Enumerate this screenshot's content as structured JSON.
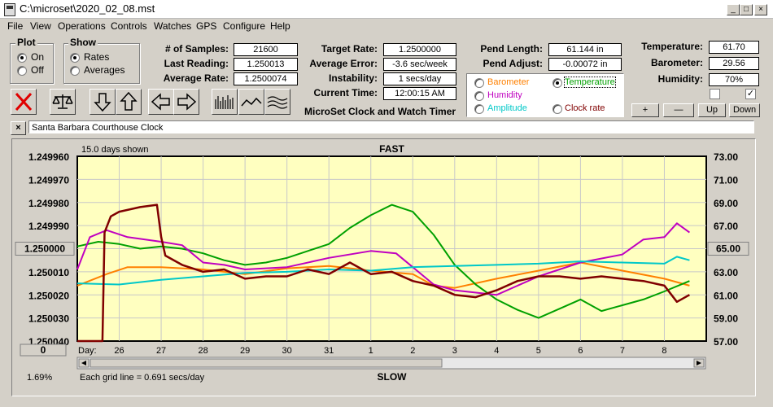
{
  "window": {
    "title": "C:\\microset\\2020_02_08.mst"
  },
  "title_buttons": {
    "minimize": "_",
    "maximize": "□",
    "close": "×"
  },
  "menu": [
    "File",
    "View",
    "Operations",
    "Controls",
    "Watches",
    "GPS",
    "Configure",
    "Help"
  ],
  "plot_group": {
    "label": "Plot",
    "on": "On",
    "off": "Off",
    "selected": "On"
  },
  "show_group": {
    "label": "Show",
    "rates": "Rates",
    "averages": "Averages",
    "selected": "Rates"
  },
  "stats": {
    "samples_label": "# of Samples:",
    "samples": "21600",
    "last_label": "Last Reading:",
    "last": "1.250013",
    "avg_label": "Average Rate:",
    "avg": "1.2500074"
  },
  "rates": {
    "target_label": "Target Rate:",
    "target": "1.2500000",
    "error_label": "Average Error:",
    "error": "-3.6 sec/week",
    "instab_label": "Instability:",
    "instab": "1 secs/day",
    "time_label": "Current Time:",
    "time": "12:00:15 AM",
    "app_name": "MicroSet Clock and Watch Timer"
  },
  "pend": {
    "length_label": "Pend Length:",
    "length": "61.144 in",
    "adjust_label": "Pend Adjust:",
    "adjust": "-0.00072 in"
  },
  "sensor_options": [
    {
      "label": "Barometer",
      "color": "#ff8000",
      "selected": false
    },
    {
      "label": "Temperature",
      "color": "#00a000",
      "selected": true
    },
    {
      "label": "Humidity",
      "color": "#c000c0",
      "selected": false
    },
    {
      "label": "Amplitude",
      "color": "#00c8c8",
      "selected": false
    },
    {
      "label": "Clock rate",
      "color": "#800000",
      "selected": false
    }
  ],
  "env": {
    "temp_label": "Temperature:",
    "temp": "61.70",
    "baro_label": "Barometer:",
    "baro": "29.56",
    "hum_label": "Humidity:",
    "hum": "70%",
    "check1": false,
    "check2": true
  },
  "adjust_buttons": {
    "plus": "+",
    "minus": "—",
    "up": "Up",
    "down": "Down"
  },
  "toolbar_icons": [
    "clear-icon",
    "balance-icon",
    "arrow-down-icon",
    "arrow-up-icon",
    "arrow-left-icon",
    "arrow-right-icon",
    "bars-icon",
    "wave-icon",
    "multi-wave-icon"
  ],
  "clock_name": {
    "close": "×",
    "value": "Santa Barbara Courthouse Clock"
  },
  "chart_data": {
    "type": "line",
    "top_left_label": "15.0 days shown",
    "top_label": "FAST",
    "bottom_label": "SLOW",
    "bottom_left_pct": "1.69%",
    "grid_note": "Each grid line = 0.691 secs/day",
    "day_prefix": "Day:",
    "center_left_button": "1.250000",
    "center_right_button": "65.00",
    "bottom_left_button": "0",
    "left_ticks": [
      "1.249960",
      "1.249970",
      "1.249980",
      "1.249990",
      "1.250000",
      "1.250010",
      "1.250020",
      "1.250030",
      "1.250040"
    ],
    "right_ticks": [
      "73.00",
      "71.00",
      "69.00",
      "67.00",
      "65.00",
      "63.00",
      "61.00",
      "59.00",
      "57.00"
    ],
    "days": [
      "26",
      "27",
      "28",
      "29",
      "30",
      "31",
      "1",
      "2",
      "3",
      "4",
      "5",
      "6",
      "7",
      "8"
    ],
    "x_range": [
      0,
      15
    ],
    "ylim_left": [
      1.24996,
      1.25004
    ],
    "ylim_right": [
      57,
      73
    ],
    "series": [
      {
        "name": "Barometer",
        "color": "#ff8000",
        "axis": "right",
        "x": [
          0,
          0.7,
          1.2,
          2,
          2.5,
          3,
          4,
          5,
          6,
          7,
          8,
          8.5,
          9,
          10,
          11,
          12,
          13,
          14,
          14.6
        ],
        "y": [
          61.8,
          62.8,
          63.4,
          63.4,
          63.3,
          63.2,
          62.8,
          63.3,
          63.5,
          63.1,
          62.8,
          61.8,
          61.6,
          62.4,
          63.1,
          63.8,
          63.1,
          62.4,
          61.8
        ]
      },
      {
        "name": "Temperature",
        "color": "#00a000",
        "axis": "right",
        "x": [
          0,
          0.5,
          1,
          1.5,
          2,
          2.5,
          3,
          3.5,
          4,
          4.5,
          5,
          5.5,
          6,
          6.5,
          7,
          7.5,
          8,
          8.5,
          9,
          9.5,
          10,
          10.5,
          11,
          11.5,
          12,
          12.5,
          13,
          13.5,
          14,
          14.6
        ],
        "y": [
          65.2,
          65.6,
          65.4,
          65.0,
          65.2,
          65.0,
          64.6,
          64.0,
          63.6,
          63.8,
          64.2,
          64.8,
          65.4,
          66.8,
          67.9,
          68.8,
          68.2,
          66.2,
          63.6,
          61.9,
          60.6,
          59.7,
          59.0,
          59.8,
          60.6,
          59.6,
          60.1,
          60.6,
          61.3,
          62.2
        ]
      },
      {
        "name": "Humidity",
        "color": "#c000c0",
        "axis": "right",
        "x": [
          0,
          0.3,
          0.7,
          1.2,
          2,
          2.5,
          3,
          3.5,
          4,
          5,
          6,
          7,
          7.6,
          8,
          8.5,
          9,
          10,
          11,
          12,
          13,
          13.5,
          14,
          14.3,
          14.6
        ],
        "y": [
          63.2,
          66.0,
          66.6,
          66.0,
          65.6,
          65.3,
          63.8,
          63.6,
          63.2,
          63.4,
          64.2,
          64.8,
          64.6,
          63.4,
          61.9,
          61.4,
          61.0,
          62.6,
          63.8,
          64.5,
          65.8,
          66.0,
          67.2,
          66.4
        ]
      },
      {
        "name": "Amplitude",
        "color": "#00c8c8",
        "axis": "right",
        "x": [
          0,
          1,
          2,
          3,
          4,
          5,
          6,
          7,
          8,
          9,
          10,
          11,
          12,
          13,
          14,
          14.3,
          14.6
        ],
        "y": [
          62.0,
          61.9,
          62.3,
          62.6,
          62.9,
          63.0,
          63.2,
          63.1,
          63.4,
          63.5,
          63.6,
          63.7,
          63.9,
          63.8,
          63.7,
          64.3,
          64.0
        ]
      },
      {
        "name": "Clock rate",
        "color": "#800000",
        "axis": "left",
        "x": [
          0,
          0.6,
          0.65,
          0.8,
          1,
          1.5,
          1.9,
          2,
          2.1,
          2.5,
          3,
          3.5,
          4,
          4.5,
          5,
          5.5,
          6,
          6.5,
          7,
          7.5,
          8,
          8.5,
          9,
          9.5,
          10,
          10.5,
          11,
          11.5,
          12,
          12.5,
          13,
          13.5,
          14,
          14.3,
          14.6
        ],
        "y": [
          1.25004,
          1.25004,
          1.249993,
          1.249986,
          1.249984,
          1.249982,
          1.249981,
          1.249995,
          1.250003,
          1.250007,
          1.25001,
          1.250009,
          1.250013,
          1.250012,
          1.250012,
          1.250009,
          1.250011,
          1.250006,
          1.250011,
          1.25001,
          1.250014,
          1.250016,
          1.25002,
          1.250021,
          1.250018,
          1.250014,
          1.250012,
          1.250012,
          1.250013,
          1.250012,
          1.250013,
          1.250014,
          1.250016,
          1.250023,
          1.25002
        ]
      }
    ]
  }
}
